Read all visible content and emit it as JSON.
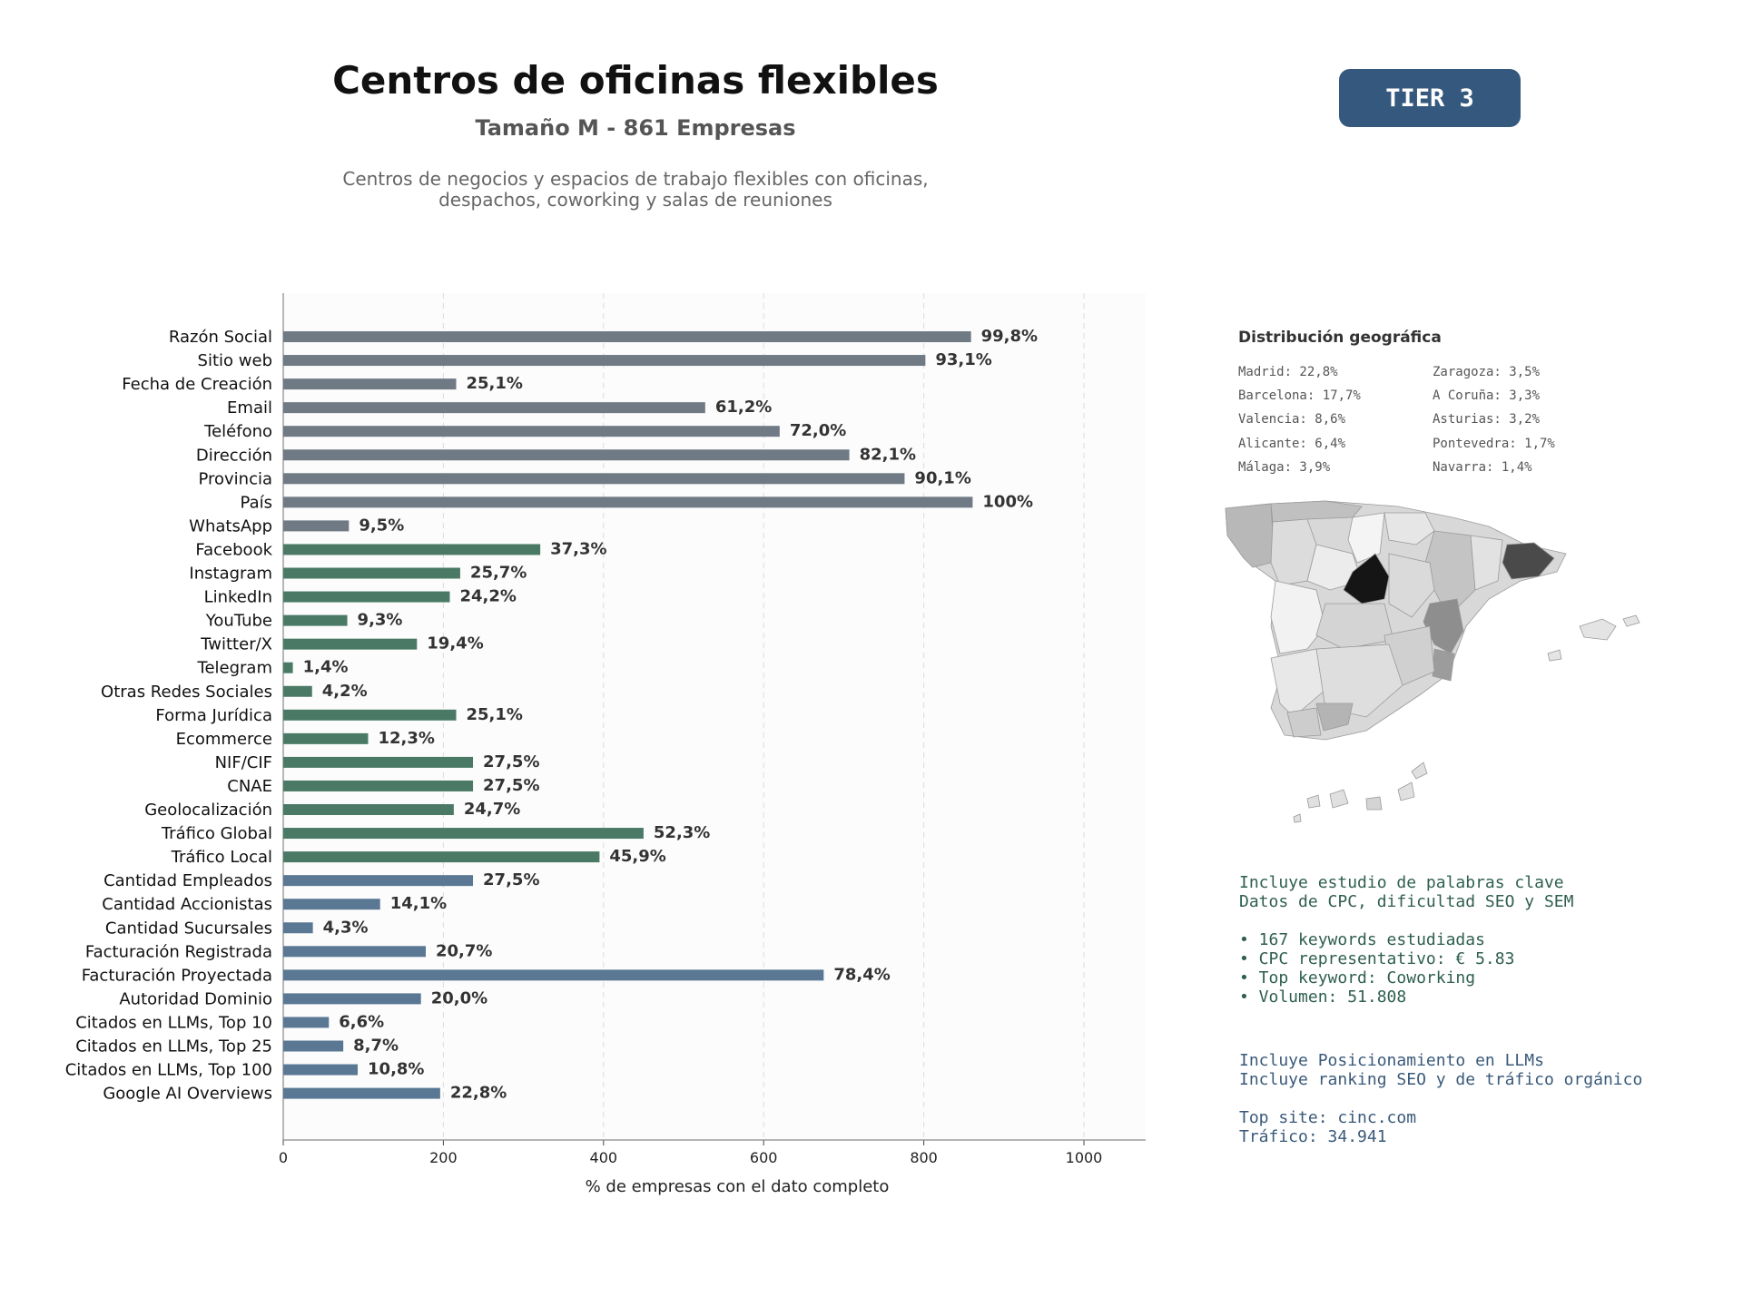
{
  "header": {
    "title": "Centros de oficinas flexibles",
    "subtitle": "Tamaño M - 861 Empresas",
    "description_line1": "Centros de negocios y espacios de trabajo flexibles con oficinas,",
    "description_line2": "despachos, coworking y salas de reuniones",
    "tier_badge": "TIER 3"
  },
  "chart_data": {
    "type": "bar",
    "orientation": "horizontal",
    "xlabel": "% de empresas con el dato completo",
    "xlim": [
      0,
      1075
    ],
    "xticks": [
      0,
      200,
      400,
      600,
      800,
      1000
    ],
    "grid": "vertical dashed",
    "categories": [
      "Razón Social",
      "Sitio web",
      "Fecha de Creación",
      "Email",
      "Teléfono",
      "Dirección",
      "Provincia",
      "País",
      "WhatsApp",
      "Facebook",
      "Instagram",
      "LinkedIn",
      "YouTube",
      "Twitter/X",
      "Telegram",
      "Otras Redes Sociales",
      "Forma Jurídica",
      "Ecommerce",
      "NIF/CIF",
      "CNAE",
      "Geolocalización",
      "Tráfico Global",
      "Tráfico Local",
      "Cantidad Empleados",
      "Cantidad Accionistas",
      "Cantidad Sucursales",
      "Facturación Registrada",
      "Facturación Proyectada",
      "Autoridad Dominio",
      "Citados en LLMs, Top 10",
      "Citados en LLMs, Top 25",
      "Citados en LLMs, Top 100",
      "Google AI Overviews"
    ],
    "values": [
      859,
      802,
      216,
      527,
      620,
      707,
      776,
      861,
      82,
      321,
      221,
      208,
      80,
      167,
      12,
      36,
      216,
      106,
      237,
      237,
      213,
      450,
      395,
      237,
      121,
      37,
      178,
      675,
      172,
      57,
      75,
      93,
      196
    ],
    "labels": [
      "99,8%",
      "93,1%",
      "25,1%",
      "61,2%",
      "72,0%",
      "82,1%",
      "90,1%",
      "100%",
      "9,5%",
      "37,3%",
      "25,7%",
      "24,2%",
      "9,3%",
      "19,4%",
      "1,4%",
      "4,2%",
      "25,1%",
      "12,3%",
      "27,5%",
      "27,5%",
      "24,7%",
      "52,3%",
      "45,9%",
      "27,5%",
      "14,1%",
      "4,3%",
      "20,7%",
      "78,4%",
      "20,0%",
      "6,6%",
      "8,7%",
      "10,8%",
      "22,8%"
    ],
    "groups": [
      {
        "count": 9,
        "color": "#6f7a85"
      },
      {
        "count": 14,
        "color": "#4a7a66"
      },
      {
        "count": 10,
        "color": "#5a7894"
      }
    ]
  },
  "geo": {
    "title": "Distribución geográfica",
    "col1": [
      "Madrid: 22,8%",
      "Barcelona: 17,7%",
      "Valencia: 8,6%",
      "Alicante: 6,4%",
      "Málaga: 3,9%"
    ],
    "col2": [
      "Zaragoza: 3,5%",
      "A Coruña: 3,3%",
      "Asturias: 3,2%",
      "Pontevedra: 1,7%",
      "Navarra: 1,4%"
    ]
  },
  "keywords": {
    "lines": [
      "Incluye estudio de palabras clave",
      "Datos de CPC, dificultad SEO y SEM",
      "",
      "• 167 keywords estudiadas",
      "• CPC representativo: € 5.83",
      "• Top keyword: Coworking",
      "• Volumen: 51.808"
    ]
  },
  "llm": {
    "lines": [
      "Incluye Posicionamiento en LLMs",
      "Incluye ranking SEO y de tráfico orgánico",
      "",
      "Top site: cinc.com",
      "Tráfico: 34.941"
    ]
  }
}
